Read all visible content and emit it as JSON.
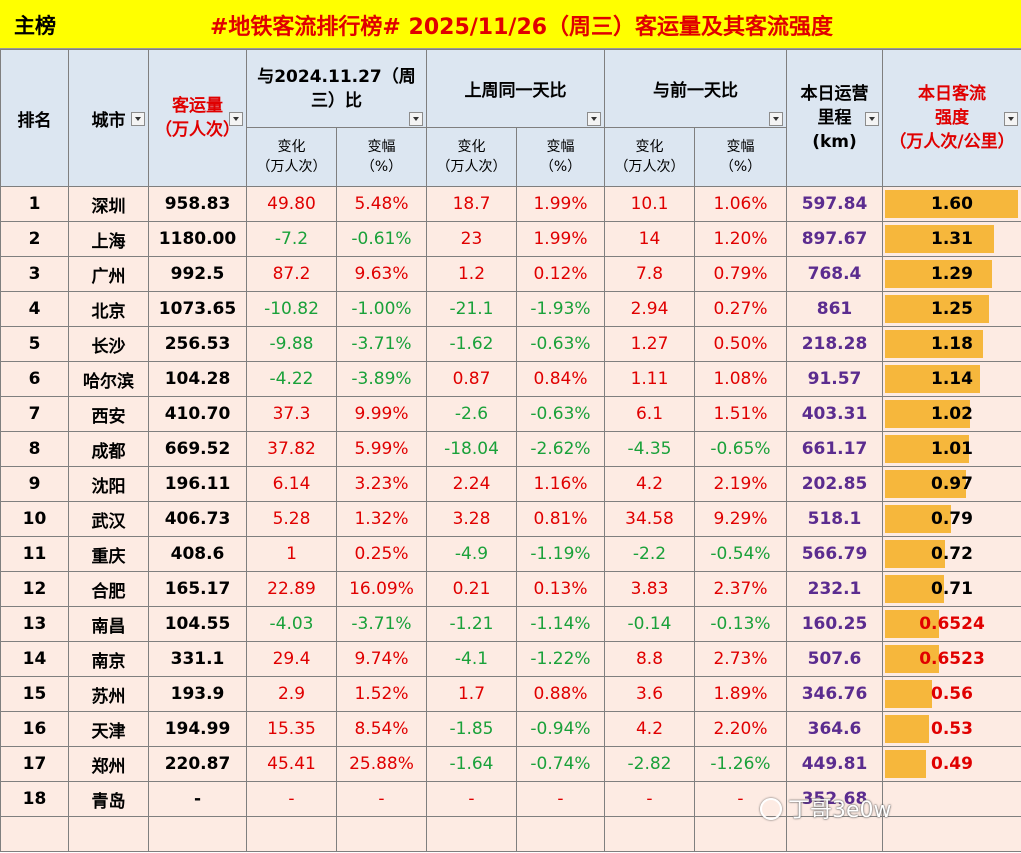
{
  "tab_label": "主榜",
  "title": "#地铁客流排行榜# 2025/11/26（周三）客运量及其客流强度",
  "headers": {
    "rank": "排名",
    "city": "城市",
    "volume_line1": "客运量",
    "volume_line2": "（万人次）",
    "yoy": "与2024.11.27（周三）比",
    "wow": "上周同一天比",
    "dod": "与前一天比",
    "change": "变化",
    "change_unit": "（万人次）",
    "pct": "变幅",
    "pct_unit": "（%）",
    "mileage_line1": "本日运营",
    "mileage_line2": "里程",
    "mileage_unit": "(km)",
    "intensity_line1": "本日客流",
    "intensity_line2": "强度",
    "intensity_unit": "（万人次/公里）"
  },
  "colors": {
    "title_bg": "#ffff00",
    "header_bg": "#dce6f1",
    "row_bg": "#fdebe3",
    "increase": "#e00000",
    "decrease": "#1aa13a",
    "mileage": "#5b2c8f",
    "bar": "#f6b73c"
  },
  "rows": [
    {
      "rank": "1",
      "city": "深圳",
      "volume": "958.83",
      "yoy_chg": "49.80",
      "yoy_pct": "5.48%",
      "wow_chg": "18.7",
      "wow_pct": "1.99%",
      "dod_chg": "10.1",
      "dod_pct": "1.06%",
      "mileage": "597.84",
      "intensity": "1.60"
    },
    {
      "rank": "2",
      "city": "上海",
      "volume": "1180.00",
      "yoy_chg": "-7.2",
      "yoy_pct": "-0.61%",
      "wow_chg": "23",
      "wow_pct": "1.99%",
      "dod_chg": "14",
      "dod_pct": "1.20%",
      "mileage": "897.67",
      "intensity": "1.31"
    },
    {
      "rank": "3",
      "city": "广州",
      "volume": "992.5",
      "yoy_chg": "87.2",
      "yoy_pct": "9.63%",
      "wow_chg": "1.2",
      "wow_pct": "0.12%",
      "dod_chg": "7.8",
      "dod_pct": "0.79%",
      "mileage": "768.4",
      "intensity": "1.29"
    },
    {
      "rank": "4",
      "city": "北京",
      "volume": "1073.65",
      "yoy_chg": "-10.82",
      "yoy_pct": "-1.00%",
      "wow_chg": "-21.1",
      "wow_pct": "-1.93%",
      "dod_chg": "2.94",
      "dod_pct": "0.27%",
      "mileage": "861",
      "intensity": "1.25"
    },
    {
      "rank": "5",
      "city": "长沙",
      "volume": "256.53",
      "yoy_chg": "-9.88",
      "yoy_pct": "-3.71%",
      "wow_chg": "-1.62",
      "wow_pct": "-0.63%",
      "dod_chg": "1.27",
      "dod_pct": "0.50%",
      "mileage": "218.28",
      "intensity": "1.18"
    },
    {
      "rank": "6",
      "city": "哈尔滨",
      "volume": "104.28",
      "yoy_chg": "-4.22",
      "yoy_pct": "-3.89%",
      "wow_chg": "0.87",
      "wow_pct": "0.84%",
      "dod_chg": "1.11",
      "dod_pct": "1.08%",
      "mileage": "91.57",
      "intensity": "1.14"
    },
    {
      "rank": "7",
      "city": "西安",
      "volume": "410.70",
      "yoy_chg": "37.3",
      "yoy_pct": "9.99%",
      "wow_chg": "-2.6",
      "wow_pct": "-0.63%",
      "dod_chg": "6.1",
      "dod_pct": "1.51%",
      "mileage": "403.31",
      "intensity": "1.02"
    },
    {
      "rank": "8",
      "city": "成都",
      "volume": "669.52",
      "yoy_chg": "37.82",
      "yoy_pct": "5.99%",
      "wow_chg": "-18.04",
      "wow_pct": "-2.62%",
      "dod_chg": "-4.35",
      "dod_pct": "-0.65%",
      "mileage": "661.17",
      "intensity": "1.01"
    },
    {
      "rank": "9",
      "city": "沈阳",
      "volume": "196.11",
      "yoy_chg": "6.14",
      "yoy_pct": "3.23%",
      "wow_chg": "2.24",
      "wow_pct": "1.16%",
      "dod_chg": "4.2",
      "dod_pct": "2.19%",
      "mileage": "202.85",
      "intensity": "0.97"
    },
    {
      "rank": "10",
      "city": "武汉",
      "volume": "406.73",
      "yoy_chg": "5.28",
      "yoy_pct": "1.32%",
      "wow_chg": "3.28",
      "wow_pct": "0.81%",
      "dod_chg": "34.58",
      "dod_pct": "9.29%",
      "mileage": "518.1",
      "intensity": "0.79"
    },
    {
      "rank": "11",
      "city": "重庆",
      "volume": "408.6",
      "yoy_chg": "1",
      "yoy_pct": "0.25%",
      "wow_chg": "-4.9",
      "wow_pct": "-1.19%",
      "dod_chg": "-2.2",
      "dod_pct": "-0.54%",
      "mileage": "566.79",
      "intensity": "0.72"
    },
    {
      "rank": "12",
      "city": "合肥",
      "volume": "165.17",
      "yoy_chg": "22.89",
      "yoy_pct": "16.09%",
      "wow_chg": "0.21",
      "wow_pct": "0.13%",
      "dod_chg": "3.83",
      "dod_pct": "2.37%",
      "mileage": "232.1",
      "intensity": "0.71"
    },
    {
      "rank": "13",
      "city": "南昌",
      "volume": "104.55",
      "yoy_chg": "-4.03",
      "yoy_pct": "-3.71%",
      "wow_chg": "-1.21",
      "wow_pct": "-1.14%",
      "dod_chg": "-0.14",
      "dod_pct": "-0.13%",
      "mileage": "160.25",
      "intensity": "0.6524"
    },
    {
      "rank": "14",
      "city": "南京",
      "volume": "331.1",
      "yoy_chg": "29.4",
      "yoy_pct": "9.74%",
      "wow_chg": "-4.1",
      "wow_pct": "-1.22%",
      "dod_chg": "8.8",
      "dod_pct": "2.73%",
      "mileage": "507.6",
      "intensity": "0.6523"
    },
    {
      "rank": "15",
      "city": "苏州",
      "volume": "193.9",
      "yoy_chg": "2.9",
      "yoy_pct": "1.52%",
      "wow_chg": "1.7",
      "wow_pct": "0.88%",
      "dod_chg": "3.6",
      "dod_pct": "1.89%",
      "mileage": "346.76",
      "intensity": "0.56"
    },
    {
      "rank": "16",
      "city": "天津",
      "volume": "194.99",
      "yoy_chg": "15.35",
      "yoy_pct": "8.54%",
      "wow_chg": "-1.85",
      "wow_pct": "-0.94%",
      "dod_chg": "4.2",
      "dod_pct": "2.20%",
      "mileage": "364.6",
      "intensity": "0.53"
    },
    {
      "rank": "17",
      "city": "郑州",
      "volume": "220.87",
      "yoy_chg": "45.41",
      "yoy_pct": "25.88%",
      "wow_chg": "-1.64",
      "wow_pct": "-0.74%",
      "dod_chg": "-2.82",
      "dod_pct": "-1.26%",
      "mileage": "449.81",
      "intensity": "0.49"
    },
    {
      "rank": "18",
      "city": "青岛",
      "volume": "-",
      "yoy_chg": "-",
      "yoy_pct": "-",
      "wow_chg": "-",
      "wow_pct": "-",
      "dod_chg": "-",
      "dod_pct": "-",
      "mileage": "352.68",
      "intensity": ""
    }
  ],
  "intensity_max": 1.6,
  "watermark": "丁哥3e0w"
}
